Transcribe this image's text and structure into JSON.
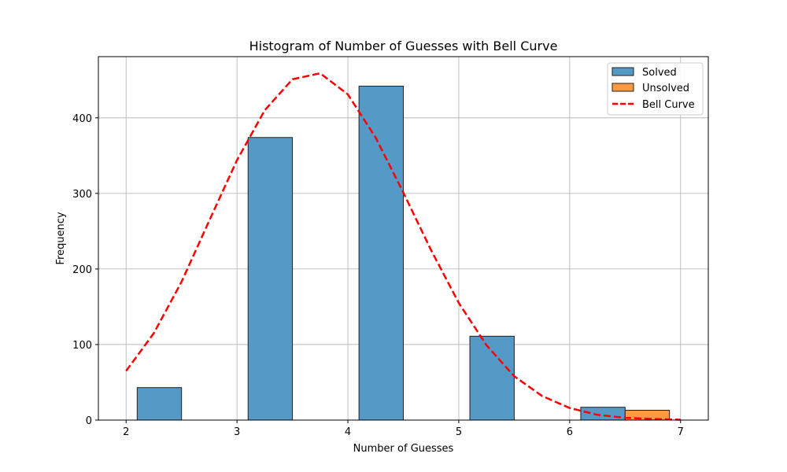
{
  "chart_data": {
    "type": "bar",
    "title": "Histogram of Number of Guesses with Bell Curve",
    "xlabel": "Number of Guesses",
    "ylabel": "Frequency",
    "xlim": [
      1.75,
      7.25
    ],
    "ylim": [
      0,
      481
    ],
    "xticks": [
      2,
      3,
      4,
      5,
      6,
      7
    ],
    "yticks": [
      0,
      100,
      200,
      300,
      400
    ],
    "grid": true,
    "legend_position": "top-right",
    "series": [
      {
        "name": "Solved",
        "color": "#5599c7",
        "bars": [
          {
            "x0": 2.1,
            "x1": 2.5,
            "value": 43
          },
          {
            "x0": 3.1,
            "x1": 3.5,
            "value": 374
          },
          {
            "x0": 4.1,
            "x1": 4.5,
            "value": 442
          },
          {
            "x0": 5.1,
            "x1": 5.5,
            "value": 111
          },
          {
            "x0": 6.1,
            "x1": 6.5,
            "value": 17
          }
        ]
      },
      {
        "name": "Unsolved",
        "color": "#ff9a42",
        "bars": [
          {
            "x0": 6.5,
            "x1": 6.9,
            "value": 13
          }
        ]
      }
    ],
    "curve": {
      "name": "Bell Curve",
      "color": "#ff0000",
      "style": "dashed",
      "points": [
        [
          2.0,
          65
        ],
        [
          2.25,
          115
        ],
        [
          2.5,
          183
        ],
        [
          2.75,
          264
        ],
        [
          3.0,
          344
        ],
        [
          3.25,
          410
        ],
        [
          3.5,
          451
        ],
        [
          3.75,
          459
        ],
        [
          4.0,
          431
        ],
        [
          4.25,
          374
        ],
        [
          4.5,
          301
        ],
        [
          4.75,
          225
        ],
        [
          5.0,
          155
        ],
        [
          5.25,
          99
        ],
        [
          5.5,
          58
        ],
        [
          5.75,
          32
        ],
        [
          6.0,
          16
        ],
        [
          6.25,
          7
        ],
        [
          6.5,
          3
        ],
        [
          6.75,
          1.5
        ],
        [
          7.0,
          0.5
        ]
      ]
    }
  }
}
